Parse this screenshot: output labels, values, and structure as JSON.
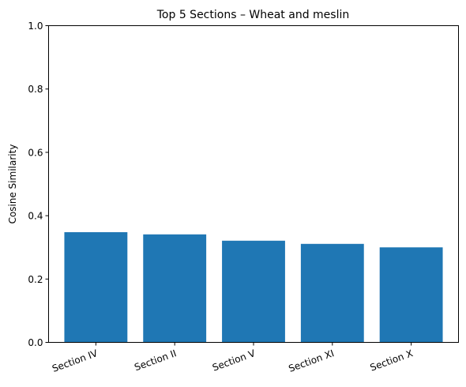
{
  "chart_data": {
    "type": "bar",
    "title": "Top 5 Sections – Wheat and meslin",
    "xlabel": "",
    "ylabel": "Cosine Similarity",
    "categories": [
      "Section IV",
      "Section II",
      "Section V",
      "Section XI",
      "Section X"
    ],
    "values": [
      0.348,
      0.341,
      0.321,
      0.311,
      0.3
    ],
    "ylim": [
      0,
      1.0
    ],
    "yticks": [
      0.0,
      0.2,
      0.4,
      0.6,
      0.8,
      1.0
    ],
    "ytick_labels": [
      "0.0",
      "0.2",
      "0.4",
      "0.6",
      "0.8",
      "1.0"
    ],
    "bar_color": "#1f77b4",
    "grid": false,
    "legend": "none"
  }
}
